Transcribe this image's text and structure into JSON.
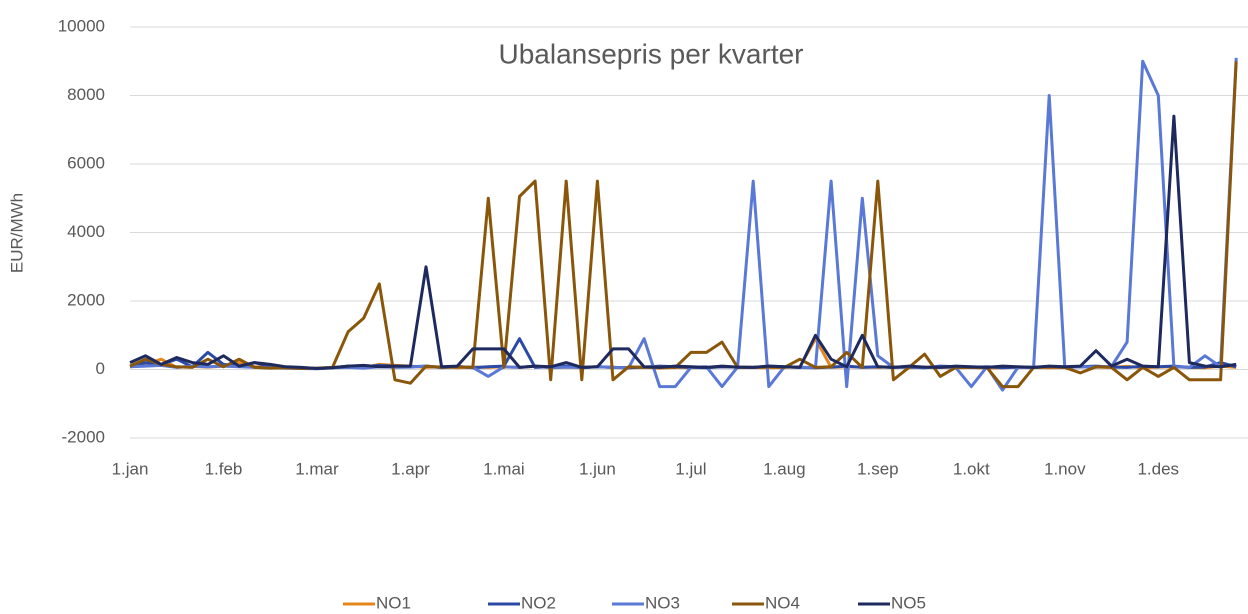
{
  "chart_data": {
    "type": "line",
    "title": "Ubalansepris per kvarter",
    "y_label": "EUR/MWh",
    "categories": [
      "1.jan",
      null,
      null,
      null,
      null,
      null,
      "1.feb",
      null,
      null,
      null,
      null,
      null,
      "1.mar",
      null,
      null,
      null,
      null,
      null,
      "1.apr",
      null,
      null,
      null,
      null,
      null,
      "1.mai",
      null,
      null,
      null,
      null,
      null,
      "1.jun",
      null,
      null,
      null,
      null,
      null,
      "1.jul",
      null,
      null,
      null,
      null,
      null,
      "1.aug",
      null,
      null,
      null,
      null,
      null,
      "1.sep",
      null,
      null,
      null,
      null,
      null,
      "1.okt",
      null,
      null,
      null,
      null,
      null,
      "1.nov",
      null,
      null,
      null,
      null,
      null,
      "1.des",
      null,
      null,
      null,
      null,
      null
    ],
    "ylim": [
      -2000,
      10000
    ],
    "yticks": [
      -2000,
      0,
      2000,
      4000,
      6000,
      8000,
      10000
    ],
    "grid": true,
    "legend": "bottom",
    "series": [
      {
        "name": "NO1",
        "color": "#e6861a",
        "values": [
          80,
          150,
          300,
          60,
          90,
          70,
          100,
          200,
          80,
          60,
          50,
          40,
          30,
          60,
          80,
          50,
          150,
          120,
          100,
          60,
          80,
          50,
          70,
          60,
          80,
          60,
          90,
          50,
          70,
          60,
          80,
          60,
          50,
          70,
          40,
          60,
          50,
          60,
          80,
          70,
          60,
          50,
          60,
          80,
          900,
          60,
          80,
          70,
          60,
          80,
          50,
          70,
          60,
          50,
          60,
          40,
          50,
          70,
          60,
          50,
          60,
          80,
          70,
          60,
          90,
          50,
          70,
          80,
          60,
          50,
          100,
          60
        ]
      },
      {
        "name": "NO2",
        "color": "#2b4aa8",
        "values": [
          100,
          200,
          150,
          300,
          80,
          500,
          150,
          100,
          200,
          80,
          60,
          40,
          30,
          50,
          100,
          80,
          120,
          100,
          80,
          100,
          60,
          90,
          50,
          80,
          100,
          900,
          60,
          80,
          100,
          50,
          80,
          60,
          50,
          70,
          100,
          80,
          60,
          50,
          80,
          70,
          60,
          100,
          80,
          60,
          50,
          70,
          100,
          60,
          80,
          60,
          70,
          50,
          100,
          80,
          60,
          80,
          50,
          70,
          60,
          80,
          60,
          80,
          100,
          70,
          60,
          90,
          80,
          100,
          60,
          70,
          200,
          80
        ]
      },
      {
        "name": "NO3",
        "color": "#5a78d6",
        "values": [
          80,
          100,
          120,
          60,
          100,
          80,
          100,
          80,
          60,
          50,
          40,
          30,
          20,
          50,
          60,
          40,
          80,
          60,
          70,
          100,
          50,
          80,
          60,
          -200,
          80,
          60,
          100,
          50,
          70,
          60,
          80,
          60,
          50,
          900,
          -500,
          -500,
          60,
          80,
          -500,
          70,
          5500,
          -500,
          80,
          60,
          60,
          5500,
          -500,
          5000,
          400,
          60,
          80,
          60,
          70,
          60,
          -500,
          80,
          -600,
          70,
          60,
          8000,
          60,
          80,
          70,
          90,
          800,
          9000,
          8000,
          80,
          60,
          400,
          80,
          9100
        ]
      },
      {
        "name": "NO4",
        "color": "#8a560a",
        "values": [
          100,
          300,
          150,
          80,
          60,
          300,
          80,
          300,
          60,
          40,
          50,
          30,
          40,
          60,
          1100,
          1500,
          2500,
          -300,
          -400,
          100,
          60,
          80,
          60,
          5000,
          60,
          5050,
          5500,
          -300,
          5500,
          -300,
          5500,
          -300,
          80,
          60,
          70,
          60,
          500,
          500,
          800,
          60,
          60,
          80,
          60,
          300,
          60,
          80,
          500,
          60,
          5500,
          -300,
          60,
          450,
          -200,
          60,
          60,
          60,
          -500,
          -500,
          60,
          80,
          60,
          -100,
          80,
          60,
          -300,
          60,
          -200,
          60,
          -300,
          -300,
          -300,
          9000
        ]
      },
      {
        "name": "NO5",
        "color": "#1e2a5e",
        "values": [
          200,
          400,
          150,
          350,
          200,
          150,
          400,
          100,
          200,
          150,
          80,
          60,
          30,
          50,
          100,
          120,
          80,
          100,
          100,
          3000,
          80,
          100,
          600,
          600,
          600,
          60,
          100,
          80,
          200,
          60,
          80,
          600,
          600,
          80,
          60,
          100,
          80,
          60,
          100,
          70,
          60,
          100,
          80,
          60,
          1000,
          300,
          80,
          1000,
          80,
          60,
          100,
          70,
          60,
          100,
          80,
          60,
          100,
          80,
          60,
          100,
          80,
          100,
          550,
          100,
          300,
          100,
          80,
          7400,
          200,
          100,
          80,
          150
        ]
      }
    ]
  }
}
